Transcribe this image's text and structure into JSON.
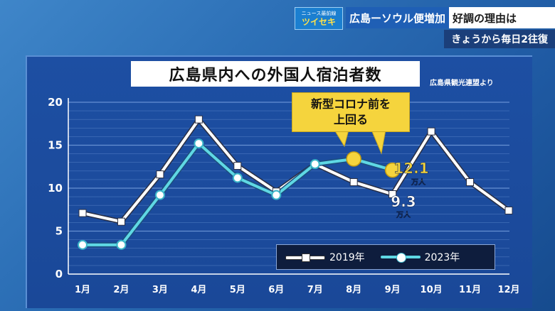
{
  "caption": {
    "badge_small": "ニュース最前線",
    "badge_big": "ツイセキ",
    "headline_a": "広島ーソウル便増加",
    "headline_b": "好調の理由は",
    "subhead": "きょうから毎日2往復"
  },
  "colors": {
    "panel": "#1d4fa3",
    "series_2019": "#ffffff",
    "series_2023": "#5fd8e4",
    "highlight": "#f5d43d",
    "accent_blue": "#1f5fb5"
  },
  "callout": {
    "line1": "新型コロナ前を",
    "line2": "上回る"
  },
  "chart_data": {
    "type": "line",
    "title": "広島県内への外国人宿泊者数",
    "source": "広島県観光連盟より",
    "categories": [
      "1月",
      "2月",
      "3月",
      "4月",
      "5月",
      "6月",
      "7月",
      "8月",
      "9月",
      "10月",
      "11月",
      "12月"
    ],
    "y_ticks": [
      "0",
      "5",
      "10",
      "15",
      "20"
    ],
    "ylim": [
      0,
      20
    ],
    "grid": true,
    "legend_position": "bottom-right",
    "series": [
      {
        "name": "2019年",
        "values": [
          7.1,
          6.1,
          11.6,
          18.0,
          12.6,
          9.6,
          12.8,
          10.7,
          9.3,
          16.6,
          10.7,
          7.4
        ]
      },
      {
        "name": "2023年",
        "values": [
          3.4,
          3.4,
          9.2,
          15.2,
          11.2,
          9.2,
          12.8,
          13.4,
          12.1,
          null,
          null,
          null
        ]
      }
    ],
    "highlight_points": [
      {
        "series": "2023年",
        "category": "8月"
      },
      {
        "series": "2023年",
        "category": "9月"
      }
    ],
    "annotations": {
      "val_2023": "12.1",
      "val_2019": "9.3",
      "unit": "万人"
    }
  }
}
